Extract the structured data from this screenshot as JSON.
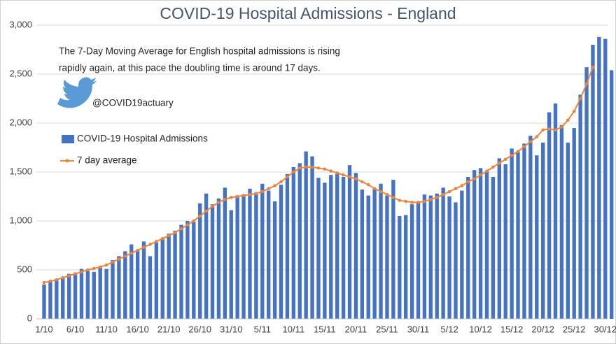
{
  "chart_data": {
    "type": "bar_line",
    "title": "COVID-19 Hospital Admissions - England",
    "annotations": [
      "The 7-Day Moving Average for English hospital admissions is rising",
      "rapidly again, at this pace the doubling time is around 17 days."
    ],
    "handle": "@COVID19actuary",
    "categories": [
      "1/10",
      null,
      null,
      null,
      null,
      "6/10",
      null,
      null,
      null,
      null,
      "11/10",
      null,
      null,
      null,
      null,
      "16/10",
      null,
      null,
      null,
      null,
      "21/10",
      null,
      null,
      null,
      null,
      "26/10",
      null,
      null,
      null,
      null,
      "31/10",
      null,
      null,
      null,
      null,
      "5/11",
      null,
      null,
      null,
      null,
      "10/11",
      null,
      null,
      null,
      null,
      "15/11",
      null,
      null,
      null,
      null,
      "20/11",
      null,
      null,
      null,
      null,
      "25/11",
      null,
      null,
      null,
      null,
      "30/11",
      null,
      null,
      null,
      null,
      "5/12",
      null,
      null,
      null,
      null,
      "10/12",
      null,
      null,
      null,
      null,
      "15/12",
      null,
      null,
      null,
      null,
      "20/12",
      null,
      null,
      null,
      null,
      "25/12",
      null,
      null,
      null,
      null,
      "30/12",
      null
    ],
    "series": [
      {
        "name": "COVID-19 Hospital Admissions",
        "color": "#4472c4",
        "kind": "bar",
        "values": [
          350,
          380,
          400,
          420,
          460,
          470,
          510,
          490,
          480,
          530,
          510,
          600,
          640,
          690,
          760,
          700,
          790,
          640,
          780,
          820,
          870,
          900,
          960,
          1000,
          990,
          1180,
          1280,
          1170,
          1230,
          1340,
          1110,
          1260,
          1270,
          1330,
          1290,
          1380,
          1310,
          1200,
          1370,
          1480,
          1550,
          1590,
          1710,
          1660,
          1440,
          1390,
          1470,
          1480,
          1450,
          1570,
          1490,
          1320,
          1260,
          1330,
          1380,
          1260,
          1420,
          1050,
          1060,
          1170,
          1190,
          1270,
          1260,
          1280,
          1340,
          1250,
          1190,
          1310,
          1450,
          1520,
          1540,
          1510,
          1450,
          1640,
          1580,
          1740,
          1710,
          1790,
          1870,
          1670,
          1800,
          2110,
          2200,
          1980,
          1800,
          1950,
          2290,
          2570,
          2800,
          2880,
          2860,
          2540
        ]
      },
      {
        "name": "7 day average",
        "color": "#e8853f",
        "kind": "line",
        "values": [
          370,
          385,
          400,
          420,
          440,
          460,
          480,
          500,
          515,
          530,
          550,
          580,
          610,
          640,
          670,
          700,
          730,
          760,
          790,
          820,
          850,
          880,
          920,
          960,
          1000,
          1050,
          1100,
          1150,
          1190,
          1220,
          1240,
          1250,
          1260,
          1270,
          1280,
          1300,
          1330,
          1360,
          1400,
          1450,
          1500,
          1540,
          1550,
          1550,
          1540,
          1530,
          1510,
          1490,
          1470,
          1450,
          1430,
          1400,
          1370,
          1330,
          1300,
          1270,
          1240,
          1210,
          1200,
          1190,
          1190,
          1200,
          1220,
          1240,
          1270,
          1300,
          1330,
          1360,
          1400,
          1430,
          1470,
          1510,
          1550,
          1590,
          1630,
          1670,
          1710,
          1760,
          1810,
          1860,
          1930,
          1940,
          1930,
          1960,
          2030,
          2120,
          2250,
          2400,
          2570,
          null,
          null,
          null
        ]
      }
    ],
    "ylim": [
      0,
      3000
    ],
    "yticks": [
      0,
      {
        "value": 500,
        "label": "500"
      },
      {
        "value": 1000,
        "label": "1,000"
      },
      {
        "value": 1500,
        "label": "1,500"
      },
      {
        "value": 2000,
        "label": "2,000"
      },
      {
        "value": 2500,
        "label": "2,500"
      },
      {
        "value": 3000,
        "label": "3,000"
      }
    ],
    "grid": true
  }
}
